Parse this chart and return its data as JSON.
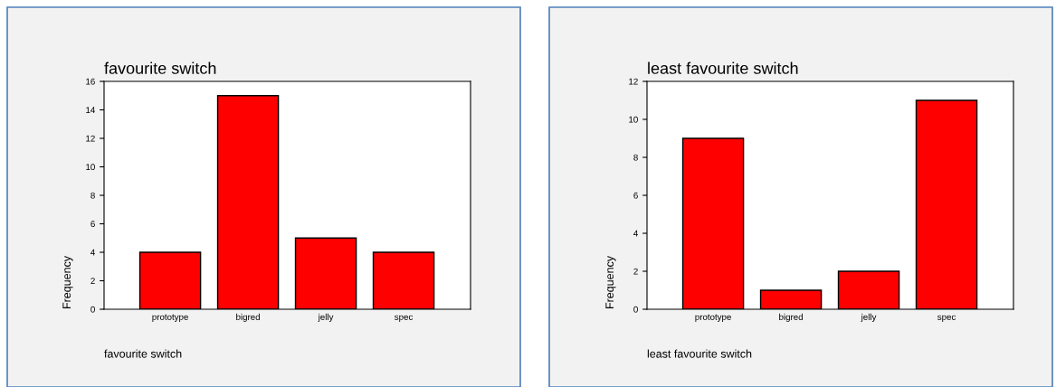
{
  "chart_data": [
    {
      "type": "bar",
      "title": "favourite switch",
      "xlabel": "favourite switch",
      "ylabel": "Frequency",
      "categories": [
        "prototype",
        "bigred",
        "jelly",
        "spec"
      ],
      "values": [
        4,
        15,
        5,
        4
      ],
      "color": "#ff0000",
      "ylim": [
        0,
        16
      ],
      "yticks": [
        0,
        2,
        4,
        6,
        8,
        10,
        12,
        14,
        16
      ],
      "grid": false,
      "legend": false
    },
    {
      "type": "bar",
      "title": "least favourite switch",
      "xlabel": "least favourite switch",
      "ylabel": "Frequency",
      "categories": [
        "prototype",
        "bigred",
        "jelly",
        "spec"
      ],
      "values": [
        9,
        1,
        2,
        11
      ],
      "color": "#ff0000",
      "ylim": [
        0,
        12
      ],
      "yticks": [
        0,
        2,
        4,
        6,
        8,
        10,
        12
      ],
      "grid": false,
      "legend": false
    }
  ]
}
